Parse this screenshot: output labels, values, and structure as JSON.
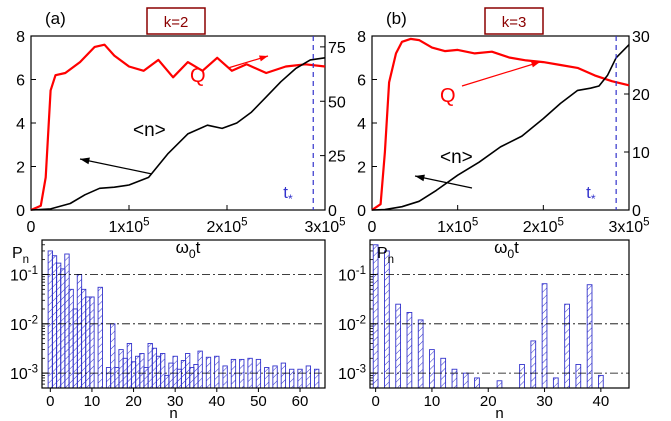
{
  "colors": {
    "q_curve": "#ff0000",
    "n_curve": "#000000",
    "tstar_line": "#3333cc",
    "bar": "#3333cc",
    "k_box": "#8b0000",
    "grid": "#000000"
  },
  "chart_data": [
    {
      "id": "top-a",
      "type": "line",
      "panel_label": "(a)",
      "k_label": "k=2",
      "xlabel": "ω0t",
      "xlim": [
        0,
        300000
      ],
      "x_ticks": [
        0,
        100000,
        200000,
        300000
      ],
      "x_tick_labels": [
        "0",
        "1x105",
        "2x105",
        "3x105"
      ],
      "left_ylim": [
        0,
        8
      ],
      "left_y_ticks": [
        "0",
        "2",
        "4",
        "6",
        "8"
      ],
      "right_ylim": [
        0,
        80
      ],
      "right_y_ticks": [
        "0",
        "25",
        "50",
        "75"
      ],
      "series": [
        {
          "name": "Q",
          "axis": "right",
          "color": "#ff0000",
          "x": [
            0,
            10000,
            15000,
            20000,
            25000,
            35000,
            50000,
            65000,
            75000,
            85000,
            100000,
            115000,
            130000,
            145000,
            160000,
            175000,
            190000,
            205000,
            220000,
            240000,
            260000,
            280000,
            300000
          ],
          "values": [
            0,
            2,
            15,
            55,
            62,
            63,
            68,
            75,
            76,
            71,
            66,
            64,
            69,
            61,
            68,
            64,
            70,
            64,
            67,
            63,
            66,
            67,
            66
          ]
        },
        {
          "name": "<n>",
          "axis": "left",
          "color": "#000000",
          "x": [
            0,
            20000,
            40000,
            55000,
            70000,
            85000,
            100000,
            120000,
            140000,
            160000,
            180000,
            195000,
            210000,
            225000,
            240000,
            255000,
            270000,
            285000,
            300000
          ],
          "values": [
            0,
            0.05,
            0.3,
            0.7,
            1.0,
            1.05,
            1.15,
            1.5,
            2.6,
            3.5,
            3.9,
            3.75,
            4.0,
            4.5,
            5.2,
            5.9,
            6.5,
            6.9,
            7.0
          ]
        }
      ],
      "labels": {
        "q": "Q",
        "n": "<n>"
      },
      "tstar": {
        "x": 288000,
        "label": "t*"
      }
    },
    {
      "id": "top-b",
      "type": "line",
      "panel_label": "(b)",
      "k_label": "k=3",
      "xlabel": "ω0t",
      "xlim": [
        0,
        300000
      ],
      "x_ticks": [
        0,
        100000,
        200000,
        300000
      ],
      "x_tick_labels": [
        "0",
        "1x105",
        "2x105",
        "3x105"
      ],
      "left_ylim": [
        0,
        8
      ],
      "left_y_ticks": [
        "0",
        "2",
        "4",
        "6",
        "8"
      ],
      "right_ylim": [
        0,
        30
      ],
      "right_y_ticks": [
        "0",
        "10",
        "20",
        "30"
      ],
      "series": [
        {
          "name": "Q",
          "axis": "right",
          "color": "#ff0000",
          "x": [
            0,
            10000,
            15000,
            20000,
            28000,
            35000,
            45000,
            55000,
            70000,
            85000,
            100000,
            120000,
            140000,
            160000,
            180000,
            200000,
            220000,
            240000,
            260000,
            280000,
            300000
          ],
          "values": [
            0,
            1,
            10,
            22,
            27,
            29,
            29.5,
            29.3,
            28,
            27.4,
            27.6,
            27,
            27.3,
            26.3,
            25.8,
            25.5,
            25,
            24.5,
            23.2,
            22.2,
            21.5
          ]
        },
        {
          "name": "<n>",
          "axis": "left",
          "color": "#000000",
          "x": [
            0,
            15000,
            35000,
            55000,
            75000,
            100000,
            125000,
            150000,
            175000,
            200000,
            220000,
            240000,
            255000,
            265000,
            275000,
            285000,
            300000
          ],
          "values": [
            0,
            0.02,
            0.15,
            0.4,
            0.9,
            1.6,
            2.2,
            2.9,
            3.4,
            4.2,
            4.9,
            5.5,
            5.6,
            5.7,
            6.2,
            7.0,
            7.6
          ]
        }
      ],
      "labels": {
        "q": "Q",
        "n": "<n>"
      },
      "tstar": {
        "x": 285000,
        "label": "t*"
      }
    },
    {
      "id": "bottom-a",
      "type": "bar",
      "ylabel": "Pn",
      "xlabel": "n",
      "yscale": "log",
      "ylim": [
        0.0005,
        0.5
      ],
      "y_ticks": [
        0.001,
        0.01,
        0.1
      ],
      "y_tick_labels": [
        "10-3",
        "10-2",
        "10-1"
      ],
      "hlines": [
        0.001,
        0.01,
        0.1
      ],
      "xlim": [
        -2,
        66
      ],
      "x_ticks": [
        0,
        10,
        20,
        30,
        40,
        50,
        60
      ],
      "n": [
        0,
        1,
        2,
        3,
        4,
        5,
        6,
        7,
        8,
        9,
        10,
        12,
        14,
        15,
        16,
        17,
        18,
        19,
        20,
        21,
        22,
        23,
        24,
        25,
        26,
        27,
        28,
        29,
        30,
        31,
        32,
        33,
        34,
        35,
        36,
        38,
        40,
        42,
        44,
        46,
        48,
        50,
        52,
        54,
        56,
        58,
        60,
        62,
        64
      ],
      "values": [
        0.3,
        0.24,
        0.17,
        0.13,
        0.26,
        0.05,
        0.02,
        0.1,
        0.05,
        0.035,
        0.035,
        0.055,
        0.0013,
        0.01,
        0.0013,
        0.003,
        0.002,
        0.004,
        0.0017,
        0.0022,
        0.0025,
        0.0013,
        0.004,
        0.0032,
        0.0022,
        0.0025,
        0.0009,
        0.0016,
        0.0022,
        0.0012,
        0.0018,
        0.0025,
        0.0013,
        0.0015,
        0.0028,
        0.0021,
        0.0022,
        0.0014,
        0.0019,
        0.0019,
        0.002,
        0.0019,
        0.0013,
        0.0014,
        0.0016,
        0.0012,
        0.0012,
        0.0014,
        0.0012
      ]
    },
    {
      "id": "bottom-b",
      "type": "bar",
      "ylabel": "Pn",
      "xlabel": "n",
      "yscale": "log",
      "ylim": [
        0.0005,
        0.5
      ],
      "y_ticks": [
        0.001,
        0.01,
        0.1
      ],
      "y_tick_labels": [
        "10-3",
        "10-2",
        "10-1"
      ],
      "hlines": [
        0.001,
        0.01,
        0.1
      ],
      "xlim": [
        -1,
        45
      ],
      "x_ticks": [
        0,
        10,
        20,
        30,
        40
      ],
      "n": [
        0,
        2,
        4,
        6,
        8,
        10,
        12,
        14,
        16,
        18,
        22,
        26,
        28,
        30,
        32,
        34,
        36,
        38,
        40
      ],
      "values": [
        0.4,
        0.3,
        0.025,
        0.017,
        0.012,
        0.003,
        0.002,
        0.0012,
        0.001,
        0.0008,
        0.0007,
        0.0015,
        0.0045,
        0.065,
        0.0008,
        0.025,
        0.0015,
        0.062,
        0.0009
      ]
    }
  ]
}
